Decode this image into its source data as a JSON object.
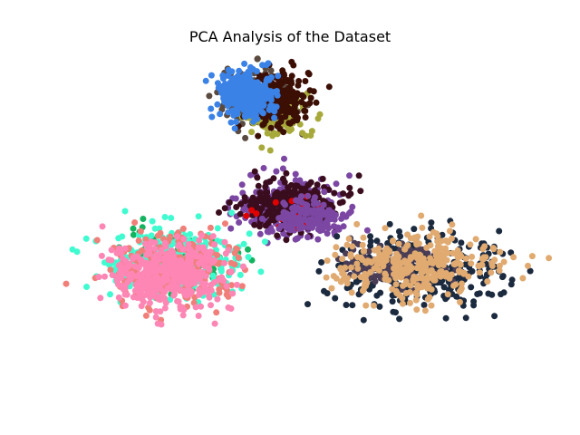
{
  "chart_data": {
    "type": "scatter",
    "title": "PCA Analysis of the Dataset",
    "xlabel": "",
    "ylabel": "",
    "axes_visible": false,
    "grid": false,
    "legend": "none",
    "xlim": [
      -6.8,
      6.8
    ],
    "ylim": [
      -5.0,
      5.0
    ],
    "clusters": [
      {
        "id": "upper",
        "center": [
          -1.2,
          3.6
        ],
        "spread": [
          0.55,
          0.45
        ],
        "series": [
          {
            "color": "#5b4a3f",
            "count": 120,
            "offset": [
              0.0,
              0.0
            ],
            "scale": 1.0
          },
          {
            "color": "#a7a93a",
            "count": 160,
            "offset": [
              0.5,
              -0.35
            ],
            "scale": 0.85
          },
          {
            "color": "#3c0f05",
            "count": 260,
            "offset": [
              0.55,
              0.0
            ],
            "scale": 0.85
          },
          {
            "color": "#3b82e6",
            "count": 320,
            "offset": [
              -0.35,
              0.15
            ],
            "scale": 0.8
          }
        ]
      },
      {
        "id": "middle",
        "center": [
          -0.2,
          0.35
        ],
        "spread": [
          0.8,
          0.45
        ],
        "series": [
          {
            "color": "#7b47a3",
            "count": 220,
            "offset": [
              0.0,
              0.0
            ],
            "scale": 1.0
          },
          {
            "color": "#3a0d1e",
            "count": 260,
            "offset": [
              0.05,
              0.1
            ],
            "scale": 0.85
          },
          {
            "color": "#e00000",
            "count": 18,
            "offset": [
              0.0,
              -0.1
            ],
            "scale": 0.7
          },
          {
            "color": "#7b47a3",
            "count": 140,
            "offset": [
              0.55,
              -0.25
            ],
            "scale": 0.6
          }
        ]
      },
      {
        "id": "right",
        "center": [
          3.6,
          -1.4
        ],
        "spread": [
          1.3,
          0.55
        ],
        "series": [
          {
            "color": "#1c2a3f",
            "count": 320,
            "offset": [
              0.1,
              -0.15
            ],
            "scale": 1.0
          },
          {
            "color": "#4a3d55",
            "count": 120,
            "offset": [
              -0.6,
              0.1
            ],
            "scale": 0.6
          },
          {
            "color": "#e0aa70",
            "count": 320,
            "offset": [
              0.0,
              0.05
            ],
            "scale": 0.9
          }
        ]
      },
      {
        "id": "left",
        "center": [
          -3.8,
          -1.45
        ],
        "spread": [
          0.95,
          0.55
        ],
        "series": [
          {
            "color": "#14b360",
            "count": 60,
            "offset": [
              0.1,
              0.2
            ],
            "scale": 1.0
          },
          {
            "color": "#40fbd0",
            "count": 300,
            "offset": [
              0.2,
              0.25
            ],
            "scale": 1.0
          },
          {
            "color": "#f07f7a",
            "count": 220,
            "offset": [
              0.0,
              0.0
            ],
            "scale": 1.0
          },
          {
            "color": "#fd86b4",
            "count": 420,
            "offset": [
              -0.15,
              -0.2
            ],
            "scale": 0.9
          }
        ]
      }
    ]
  }
}
